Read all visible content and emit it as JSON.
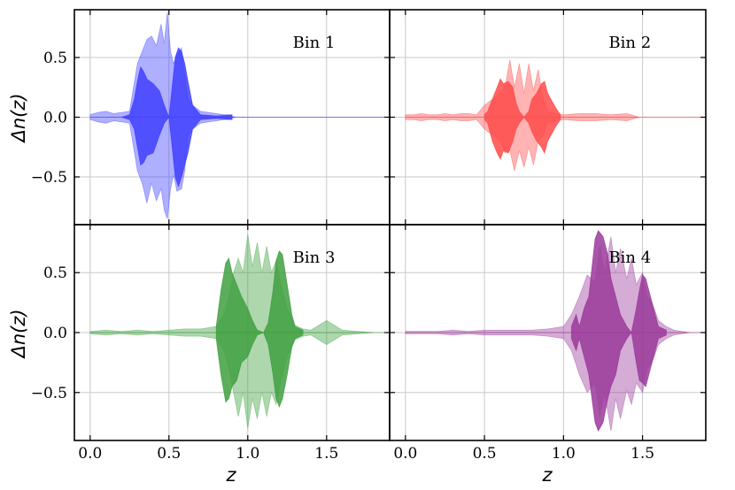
{
  "chart_data": {
    "type": "area",
    "layout": "2x2 grid, shared axes",
    "xlabel": "z",
    "ylabel": "Δn(z)",
    "xlim": [
      -0.1,
      1.9
    ],
    "ylim": [
      -0.9,
      0.9
    ],
    "xticks": [
      "0.0",
      "0.5",
      "1.0",
      "1.5"
    ],
    "yticks": [
      "0.5",
      "0.0",
      "−0.5"
    ],
    "grid": true,
    "panels": [
      {
        "label": "Bin 1",
        "color": "#4040ff",
        "light": {
          "x": [
            0.0,
            0.05,
            0.1,
            0.15,
            0.2,
            0.25,
            0.3,
            0.33,
            0.36,
            0.39,
            0.42,
            0.45,
            0.47,
            0.49,
            0.51,
            0.53,
            0.55,
            0.58,
            0.6,
            0.62,
            0.65,
            0.7,
            0.75,
            0.8,
            0.85,
            0.88,
            0.9,
            0.92
          ],
          "upper": [
            0.02,
            0.04,
            0.05,
            0.03,
            0.04,
            0.05,
            0.45,
            0.55,
            0.65,
            0.68,
            0.6,
            0.78,
            0.62,
            0.88,
            0.55,
            0.45,
            0.52,
            0.58,
            0.35,
            0.15,
            0.1,
            0.05,
            0.04,
            0.03,
            0.02,
            0.02,
            0.01,
            0.0
          ],
          "lower": [
            -0.02,
            -0.04,
            -0.05,
            -0.03,
            -0.04,
            -0.05,
            -0.45,
            -0.55,
            -0.72,
            -0.55,
            -0.7,
            -0.6,
            -0.78,
            -0.85,
            -0.6,
            -0.48,
            -0.62,
            -0.6,
            -0.45,
            -0.15,
            -0.1,
            -0.05,
            -0.04,
            -0.03,
            -0.02,
            -0.02,
            -0.01,
            0.0
          ]
        },
        "dark": {
          "x": [
            0.2,
            0.25,
            0.28,
            0.3,
            0.32,
            0.34,
            0.36,
            0.4,
            0.44,
            0.47,
            0.5,
            0.52,
            0.54,
            0.56,
            0.58,
            0.6,
            0.62,
            0.65,
            0.7,
            0.8,
            0.9
          ],
          "upper": [
            0.0,
            0.02,
            0.15,
            0.3,
            0.42,
            0.38,
            0.32,
            0.28,
            0.22,
            0.1,
            0.0,
            0.25,
            0.5,
            0.58,
            0.55,
            0.45,
            0.3,
            0.1,
            0.02,
            0.01,
            0.02
          ],
          "lower": [
            0.0,
            -0.02,
            -0.1,
            -0.25,
            -0.4,
            -0.38,
            -0.32,
            -0.3,
            -0.15,
            -0.05,
            0.0,
            -0.25,
            -0.5,
            -0.58,
            -0.5,
            -0.4,
            -0.3,
            -0.1,
            -0.02,
            -0.01,
            -0.02
          ]
        }
      },
      {
        "label": "Bin 2",
        "color": "#ff4a4a",
        "light": {
          "x": [
            0.0,
            0.05,
            0.1,
            0.15,
            0.2,
            0.25,
            0.3,
            0.35,
            0.4,
            0.45,
            0.5,
            0.55,
            0.6,
            0.63,
            0.66,
            0.69,
            0.72,
            0.75,
            0.78,
            0.81,
            0.84,
            0.87,
            0.9,
            0.95,
            1.0,
            1.1,
            1.2,
            1.3,
            1.4,
            1.48
          ],
          "upper": [
            0.02,
            0.02,
            0.03,
            0.02,
            0.02,
            0.03,
            0.02,
            0.03,
            0.03,
            0.02,
            0.1,
            0.15,
            0.2,
            0.25,
            0.48,
            0.25,
            0.45,
            0.2,
            0.45,
            0.22,
            0.4,
            0.15,
            0.05,
            0.03,
            0.02,
            0.03,
            0.03,
            0.02,
            0.03,
            0.0
          ],
          "lower": [
            -0.02,
            -0.02,
            -0.03,
            -0.02,
            -0.02,
            -0.03,
            -0.02,
            -0.03,
            -0.03,
            -0.02,
            -0.1,
            -0.15,
            -0.2,
            -0.3,
            -0.28,
            -0.45,
            -0.28,
            -0.42,
            -0.25,
            -0.4,
            -0.2,
            -0.15,
            -0.05,
            -0.03,
            -0.02,
            -0.03,
            -0.03,
            -0.02,
            -0.03,
            0.0
          ]
        },
        "dark": {
          "x": [
            0.5,
            0.52,
            0.55,
            0.58,
            0.6,
            0.62,
            0.65,
            0.68,
            0.7,
            0.72,
            0.75,
            0.78,
            0.8,
            0.83,
            0.86,
            0.88,
            0.9,
            0.92,
            0.95,
            0.98
          ],
          "upper": [
            0.02,
            0.05,
            0.15,
            0.25,
            0.32,
            0.28,
            0.3,
            0.25,
            0.12,
            0.05,
            0.0,
            0.05,
            0.15,
            0.2,
            0.28,
            0.3,
            0.2,
            0.15,
            0.08,
            0.02
          ],
          "lower": [
            -0.02,
            -0.05,
            -0.2,
            -0.3,
            -0.35,
            -0.28,
            -0.3,
            -0.2,
            -0.1,
            -0.05,
            0.0,
            -0.05,
            -0.12,
            -0.2,
            -0.25,
            -0.3,
            -0.2,
            -0.15,
            -0.08,
            -0.02
          ]
        }
      },
      {
        "label": "Bin 3",
        "color": "#3fa03f",
        "light": {
          "x": [
            0.0,
            0.1,
            0.2,
            0.3,
            0.4,
            0.5,
            0.6,
            0.7,
            0.8,
            0.85,
            0.88,
            0.91,
            0.94,
            0.97,
            1.0,
            1.03,
            1.06,
            1.09,
            1.12,
            1.15,
            1.18,
            1.21,
            1.25,
            1.3,
            1.35,
            1.4,
            1.45,
            1.5,
            1.55,
            1.6,
            1.7,
            1.8
          ],
          "upper": [
            0.01,
            0.02,
            0.01,
            0.02,
            0.01,
            0.02,
            0.03,
            0.03,
            0.05,
            0.15,
            0.3,
            0.5,
            0.62,
            0.5,
            0.82,
            0.55,
            0.75,
            0.5,
            0.72,
            0.5,
            0.6,
            0.4,
            0.2,
            0.06,
            0.03,
            0.02,
            0.06,
            0.1,
            0.06,
            0.02,
            0.01,
            0.0
          ],
          "lower": [
            -0.01,
            -0.02,
            -0.01,
            -0.02,
            -0.01,
            -0.02,
            -0.03,
            -0.03,
            -0.05,
            -0.15,
            -0.3,
            -0.5,
            -0.7,
            -0.5,
            -0.8,
            -0.55,
            -0.72,
            -0.5,
            -0.7,
            -0.5,
            -0.6,
            -0.4,
            -0.2,
            -0.06,
            -0.03,
            -0.02,
            -0.06,
            -0.1,
            -0.06,
            -0.02,
            -0.01,
            0.0
          ]
        },
        "dark": {
          "x": [
            0.8,
            0.83,
            0.86,
            0.88,
            0.9,
            0.93,
            0.96,
            1.0,
            1.03,
            1.06,
            1.1,
            1.13,
            1.16,
            1.18,
            1.2,
            1.22,
            1.25,
            1.28,
            1.3,
            1.35
          ],
          "upper": [
            0.05,
            0.35,
            0.58,
            0.62,
            0.5,
            0.4,
            0.3,
            0.2,
            0.1,
            0.02,
            0.0,
            0.08,
            0.35,
            0.6,
            0.68,
            0.65,
            0.4,
            0.15,
            0.05,
            0.02
          ],
          "lower": [
            -0.05,
            -0.35,
            -0.58,
            -0.55,
            -0.45,
            -0.4,
            -0.25,
            -0.2,
            -0.1,
            -0.02,
            0.0,
            -0.1,
            -0.35,
            -0.55,
            -0.62,
            -0.55,
            -0.35,
            -0.12,
            -0.05,
            -0.02
          ]
        }
      },
      {
        "label": "Bin 4",
        "color": "#9a3a9a",
        "light": {
          "x": [
            0.0,
            0.1,
            0.2,
            0.3,
            0.4,
            0.5,
            0.6,
            0.7,
            0.8,
            0.9,
            1.0,
            1.05,
            1.1,
            1.15,
            1.2,
            1.23,
            1.26,
            1.3,
            1.33,
            1.36,
            1.4,
            1.43,
            1.46,
            1.5,
            1.53,
            1.56,
            1.6,
            1.65,
            1.7,
            1.8
          ],
          "upper": [
            0.01,
            0.01,
            0.01,
            0.02,
            0.01,
            0.02,
            0.02,
            0.02,
            0.02,
            0.03,
            0.05,
            0.15,
            0.3,
            0.48,
            0.42,
            0.72,
            0.5,
            0.8,
            0.5,
            0.7,
            0.45,
            0.62,
            0.4,
            0.5,
            0.3,
            0.25,
            0.1,
            0.05,
            0.02,
            0.0
          ],
          "lower": [
            -0.01,
            -0.01,
            -0.01,
            -0.02,
            -0.01,
            -0.02,
            -0.02,
            -0.02,
            -0.02,
            -0.03,
            -0.05,
            -0.15,
            -0.35,
            -0.5,
            -0.42,
            -0.7,
            -0.5,
            -0.82,
            -0.55,
            -0.72,
            -0.48,
            -0.6,
            -0.42,
            -0.5,
            -0.3,
            -0.25,
            -0.1,
            -0.05,
            -0.02,
            0.0
          ]
        },
        "dark": {
          "x": [
            1.05,
            1.08,
            1.1,
            1.13,
            1.16,
            1.2,
            1.22,
            1.25,
            1.28,
            1.3,
            1.33,
            1.36,
            1.4,
            1.43,
            1.46,
            1.48,
            1.5,
            1.52,
            1.55,
            1.58,
            1.6,
            1.65
          ],
          "upper": [
            0.05,
            0.15,
            0.05,
            0.2,
            0.3,
            0.78,
            0.85,
            0.8,
            0.65,
            0.45,
            0.3,
            0.15,
            0.05,
            0.0,
            0.2,
            0.35,
            0.48,
            0.45,
            0.3,
            0.15,
            0.05,
            0.02
          ],
          "lower": [
            -0.05,
            -0.15,
            -0.05,
            -0.2,
            -0.35,
            -0.75,
            -0.82,
            -0.75,
            -0.55,
            -0.45,
            -0.35,
            -0.15,
            -0.05,
            0.0,
            -0.25,
            -0.4,
            -0.42,
            -0.45,
            -0.3,
            -0.15,
            -0.05,
            -0.02
          ]
        }
      }
    ]
  }
}
